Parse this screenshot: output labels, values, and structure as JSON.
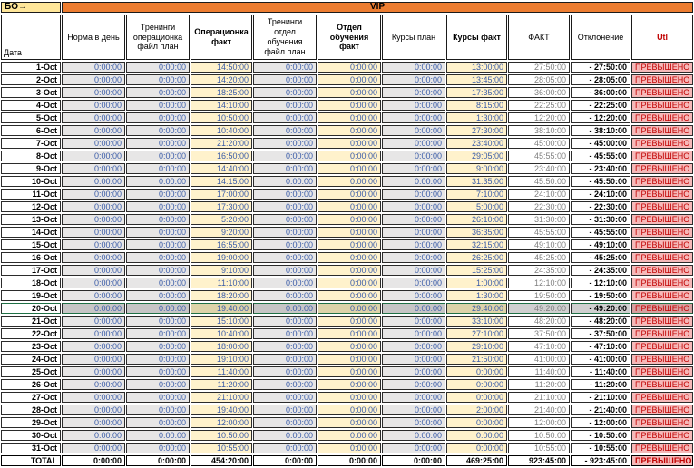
{
  "sheet": {
    "corner_label": "БО→",
    "band_label": "VIP",
    "date_header": "Дата",
    "total_label": "TOTAL",
    "highlighted_date": "20-Oct",
    "status_exceeded": "ПРЕВЫШЕНО",
    "colors": {
      "band_orange": "#ED7D31",
      "corner_yellow": "#FFE699",
      "plan_gray": "#E7E6E6",
      "fact_cream": "#FFF2CC",
      "utl_pink": "#F6B9B9",
      "alert_red": "#C00000",
      "value_blue": "#3A5CA8",
      "highlight_green": "#1F7145"
    },
    "columns": [
      {
        "id": "norm-per-day",
        "label": "Норма в день",
        "kind": "plan",
        "bold": false
      },
      {
        "id": "trainings-operations-plan",
        "label": "Тренинги операционка файл план",
        "kind": "plan",
        "bold": false
      },
      {
        "id": "operations-fact",
        "label": "Операционка факт",
        "kind": "fact",
        "bold": true
      },
      {
        "id": "trainings-education-plan",
        "label": "Тренинги отдел обучения файл план",
        "kind": "plan",
        "bold": false
      },
      {
        "id": "education-dept-fact",
        "label": "Отдел обучения факт",
        "kind": "fact",
        "bold": true
      },
      {
        "id": "courses-plan",
        "label": "Курсы план",
        "kind": "plan",
        "bold": false
      },
      {
        "id": "courses-fact",
        "label": "Курсы факт",
        "kind": "fact",
        "bold": true
      },
      {
        "id": "fact-total",
        "label": "ФАКТ",
        "kind": "white",
        "bold": false
      },
      {
        "id": "deviation",
        "label": "Отклонение",
        "kind": "deviation",
        "bold": false
      },
      {
        "id": "utl",
        "label": "Utl",
        "kind": "utl",
        "bold": true
      }
    ],
    "rows": [
      {
        "date": "1-Oct",
        "values": [
          "0:00:00",
          "0:00:00",
          "14:50:00",
          "0:00:00",
          "0:00:00",
          "0:00:00",
          "13:00:00",
          "27:50:00",
          "- 27:50:00",
          "ПРЕВЫШЕНО"
        ]
      },
      {
        "date": "2-Oct",
        "values": [
          "0:00:00",
          "0:00:00",
          "14:20:00",
          "0:00:00",
          "0:00:00",
          "0:00:00",
          "13:45:00",
          "28:05:00",
          "- 28:05:00",
          "ПРЕВЫШЕНО"
        ]
      },
      {
        "date": "3-Oct",
        "values": [
          "0:00:00",
          "0:00:00",
          "18:25:00",
          "0:00:00",
          "0:00:00",
          "0:00:00",
          "17:35:00",
          "36:00:00",
          "- 36:00:00",
          "ПРЕВЫШЕНО"
        ]
      },
      {
        "date": "4-Oct",
        "values": [
          "0:00:00",
          "0:00:00",
          "14:10:00",
          "0:00:00",
          "0:00:00",
          "0:00:00",
          "8:15:00",
          "22:25:00",
          "- 22:25:00",
          "ПРЕВЫШЕНО"
        ]
      },
      {
        "date": "5-Oct",
        "values": [
          "0:00:00",
          "0:00:00",
          "10:50:00",
          "0:00:00",
          "0:00:00",
          "0:00:00",
          "1:30:00",
          "12:20:00",
          "- 12:20:00",
          "ПРЕВЫШЕНО"
        ]
      },
      {
        "date": "6-Oct",
        "values": [
          "0:00:00",
          "0:00:00",
          "10:40:00",
          "0:00:00",
          "0:00:00",
          "0:00:00",
          "27:30:00",
          "38:10:00",
          "- 38:10:00",
          "ПРЕВЫШЕНО"
        ]
      },
      {
        "date": "7-Oct",
        "values": [
          "0:00:00",
          "0:00:00",
          "21:20:00",
          "0:00:00",
          "0:00:00",
          "0:00:00",
          "23:40:00",
          "45:00:00",
          "- 45:00:00",
          "ПРЕВЫШЕНО"
        ]
      },
      {
        "date": "8-Oct",
        "values": [
          "0:00:00",
          "0:00:00",
          "16:50:00",
          "0:00:00",
          "0:00:00",
          "0:00:00",
          "29:05:00",
          "45:55:00",
          "- 45:55:00",
          "ПРЕВЫШЕНО"
        ]
      },
      {
        "date": "9-Oct",
        "values": [
          "0:00:00",
          "0:00:00",
          "14:40:00",
          "0:00:00",
          "0:00:00",
          "0:00:00",
          "9:00:00",
          "23:40:00",
          "- 23:40:00",
          "ПРЕВЫШЕНО"
        ]
      },
      {
        "date": "10-Oct",
        "values": [
          "0:00:00",
          "0:00:00",
          "14:15:00",
          "0:00:00",
          "0:00:00",
          "0:00:00",
          "31:35:00",
          "45:50:00",
          "- 45:50:00",
          "ПРЕВЫШЕНО"
        ]
      },
      {
        "date": "11-Oct",
        "values": [
          "0:00:00",
          "0:00:00",
          "17:00:00",
          "0:00:00",
          "0:00:00",
          "0:00:00",
          "7:10:00",
          "24:10:00",
          "- 24:10:00",
          "ПРЕВЫШЕНО"
        ]
      },
      {
        "date": "12-Oct",
        "values": [
          "0:00:00",
          "0:00:00",
          "17:30:00",
          "0:00:00",
          "0:00:00",
          "0:00:00",
          "5:00:00",
          "22:30:00",
          "- 22:30:00",
          "ПРЕВЫШЕНО"
        ]
      },
      {
        "date": "13-Oct",
        "values": [
          "0:00:00",
          "0:00:00",
          "5:20:00",
          "0:00:00",
          "0:00:00",
          "0:00:00",
          "26:10:00",
          "31:30:00",
          "- 31:30:00",
          "ПРЕВЫШЕНО"
        ]
      },
      {
        "date": "14-Oct",
        "values": [
          "0:00:00",
          "0:00:00",
          "9:20:00",
          "0:00:00",
          "0:00:00",
          "0:00:00",
          "36:35:00",
          "45:55:00",
          "- 45:55:00",
          "ПРЕВЫШЕНО"
        ]
      },
      {
        "date": "15-Oct",
        "values": [
          "0:00:00",
          "0:00:00",
          "16:55:00",
          "0:00:00",
          "0:00:00",
          "0:00:00",
          "32:15:00",
          "49:10:00",
          "- 49:10:00",
          "ПРЕВЫШЕНО"
        ]
      },
      {
        "date": "16-Oct",
        "values": [
          "0:00:00",
          "0:00:00",
          "19:00:00",
          "0:00:00",
          "0:00:00",
          "0:00:00",
          "26:25:00",
          "45:25:00",
          "- 45:25:00",
          "ПРЕВЫШЕНО"
        ]
      },
      {
        "date": "17-Oct",
        "values": [
          "0:00:00",
          "0:00:00",
          "9:10:00",
          "0:00:00",
          "0:00:00",
          "0:00:00",
          "15:25:00",
          "24:35:00",
          "- 24:35:00",
          "ПРЕВЫШЕНО"
        ]
      },
      {
        "date": "18-Oct",
        "values": [
          "0:00:00",
          "0:00:00",
          "11:10:00",
          "0:00:00",
          "0:00:00",
          "0:00:00",
          "1:00:00",
          "12:10:00",
          "- 12:10:00",
          "ПРЕВЫШЕНО"
        ]
      },
      {
        "date": "19-Oct",
        "values": [
          "0:00:00",
          "0:00:00",
          "18:20:00",
          "0:00:00",
          "0:00:00",
          "0:00:00",
          "1:30:00",
          "19:50:00",
          "- 19:50:00",
          "ПРЕВЫШЕНО"
        ]
      },
      {
        "date": "20-Oct",
        "values": [
          "0:00:00",
          "0:00:00",
          "19:40:00",
          "0:00:00",
          "0:00:00",
          "0:00:00",
          "29:40:00",
          "49:20:00",
          "- 49:20:00",
          "ПРЕВЫШЕНО"
        ]
      },
      {
        "date": "21-Oct",
        "values": [
          "0:00:00",
          "0:00:00",
          "15:10:00",
          "0:00:00",
          "0:00:00",
          "0:00:00",
          "33:10:00",
          "48:20:00",
          "- 48:20:00",
          "ПРЕВЫШЕНО"
        ]
      },
      {
        "date": "22-Oct",
        "values": [
          "0:00:00",
          "0:00:00",
          "10:40:00",
          "0:00:00",
          "0:00:00",
          "0:00:00",
          "27:10:00",
          "37:50:00",
          "- 37:50:00",
          "ПРЕВЫШЕНО"
        ]
      },
      {
        "date": "23-Oct",
        "values": [
          "0:00:00",
          "0:00:00",
          "18:00:00",
          "0:00:00",
          "0:00:00",
          "0:00:00",
          "29:10:00",
          "47:10:00",
          "- 47:10:00",
          "ПРЕВЫШЕНО"
        ]
      },
      {
        "date": "24-Oct",
        "values": [
          "0:00:00",
          "0:00:00",
          "19:10:00",
          "0:00:00",
          "0:00:00",
          "0:00:00",
          "21:50:00",
          "41:00:00",
          "- 41:00:00",
          "ПРЕВЫШЕНО"
        ]
      },
      {
        "date": "25-Oct",
        "values": [
          "0:00:00",
          "0:00:00",
          "11:40:00",
          "0:00:00",
          "0:00:00",
          "0:00:00",
          "0:00:00",
          "11:40:00",
          "- 11:40:00",
          "ПРЕВЫШЕНО"
        ]
      },
      {
        "date": "26-Oct",
        "values": [
          "0:00:00",
          "0:00:00",
          "11:20:00",
          "0:00:00",
          "0:00:00",
          "0:00:00",
          "0:00:00",
          "11:20:00",
          "- 11:20:00",
          "ПРЕВЫШЕНО"
        ]
      },
      {
        "date": "27-Oct",
        "values": [
          "0:00:00",
          "0:00:00",
          "21:10:00",
          "0:00:00",
          "0:00:00",
          "0:00:00",
          "0:00:00",
          "21:10:00",
          "- 21:10:00",
          "ПРЕВЫШЕНО"
        ]
      },
      {
        "date": "28-Oct",
        "values": [
          "0:00:00",
          "0:00:00",
          "19:40:00",
          "0:00:00",
          "0:00:00",
          "0:00:00",
          "2:00:00",
          "21:40:00",
          "- 21:40:00",
          "ПРЕВЫШЕНО"
        ]
      },
      {
        "date": "29-Oct",
        "values": [
          "0:00:00",
          "0:00:00",
          "12:00:00",
          "0:00:00",
          "0:00:00",
          "0:00:00",
          "0:00:00",
          "12:00:00",
          "- 12:00:00",
          "ПРЕВЫШЕНО"
        ]
      },
      {
        "date": "30-Oct",
        "values": [
          "0:00:00",
          "0:00:00",
          "10:50:00",
          "0:00:00",
          "0:00:00",
          "0:00:00",
          "0:00:00",
          "10:50:00",
          "- 10:50:00",
          "ПРЕВЫШЕНО"
        ]
      },
      {
        "date": "31-Oct",
        "values": [
          "0:00:00",
          "0:00:00",
          "10:55:00",
          "0:00:00",
          "0:00:00",
          "0:00:00",
          "0:00:00",
          "10:55:00",
          "- 10:55:00",
          "ПРЕВЫШЕНО"
        ]
      }
    ],
    "total_row": {
      "label": "TOTAL",
      "values": [
        "0:00:00",
        "0:00:00",
        "454:20:00",
        "0:00:00",
        "0:00:00",
        "0:00:00",
        "469:25:00",
        "923:45:00",
        "- 923:45:00",
        "ПРЕВЫШЕНО"
      ]
    }
  }
}
